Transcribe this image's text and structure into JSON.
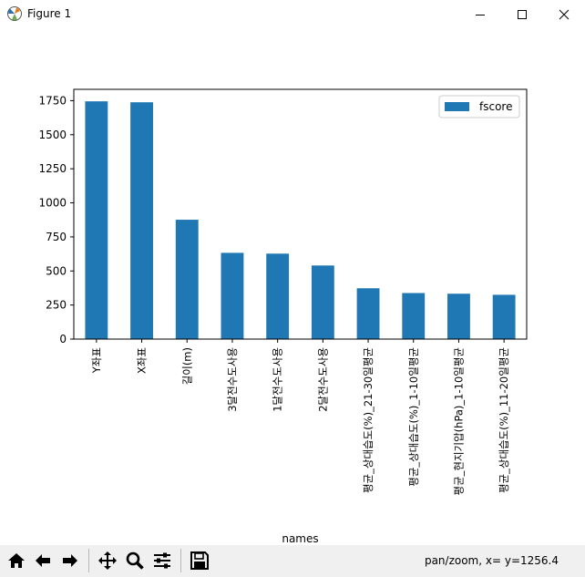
{
  "window": {
    "title": "Figure 1",
    "status_text": "pan/zoom, x= y=1256.4"
  },
  "toolbar": {
    "buttons": [
      "home-icon",
      "back-arrow-icon",
      "forward-arrow-icon",
      "move-icon",
      "zoom-icon",
      "configure-subplots-icon",
      "save-icon"
    ]
  },
  "colors": {
    "bar": "#1f77b4",
    "toolbar_bg": "#f0f0f0"
  },
  "chart_data": {
    "type": "bar",
    "categories": [
      "Y좌표",
      "X좌표",
      "길이(m)",
      "3달전수도사용",
      "1달전수도사용",
      "2달전수도사용",
      "평균_상대습도(%)_21-30일평균",
      "평균_상대습도(%)_1-10일평균",
      "평균_현지기압(hPa)_1-10일평균",
      "평균_상대습도(%)_11-20일평균"
    ],
    "series": [
      {
        "name": "fscore",
        "values": [
          1745,
          1738,
          876,
          633,
          627,
          540,
          373,
          338,
          333,
          325
        ]
      }
    ],
    "xlabel": "names",
    "ylabel": "",
    "ylim": [
      0,
      1833
    ],
    "yticks": [
      0,
      250,
      500,
      750,
      1000,
      1250,
      1500,
      1750
    ],
    "legend": "top-right",
    "grid": false
  }
}
